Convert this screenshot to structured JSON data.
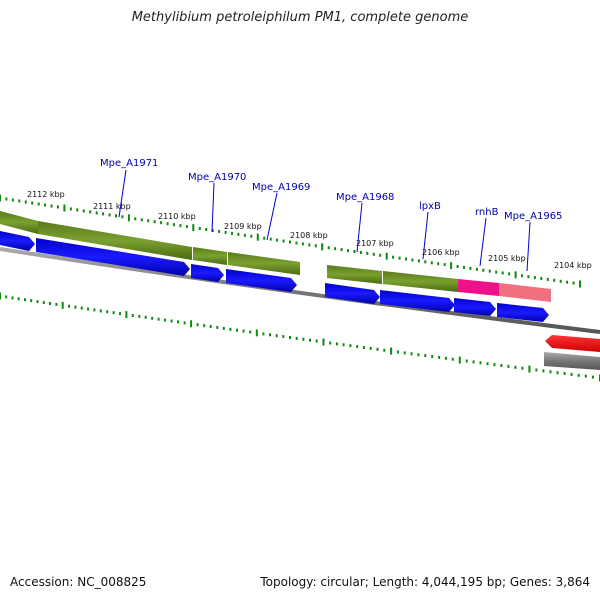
{
  "header": {
    "title": "Methylibium petroleiphilum PM1, complete genome"
  },
  "footer": {
    "accession": "Accession: NC_008825",
    "summary": "Topology: circular; Length: 4,044,195 bp; Genes: 3,864"
  },
  "map": {
    "kbp_labels": [
      "2112 kbp",
      "2111 kbp",
      "2110 kbp",
      "2109 kbp",
      "2108 kbp",
      "2107 kbp",
      "2106 kbp",
      "2105 kbp",
      "2104 kbp"
    ],
    "gene_labels": [
      "Mpe_A1971",
      "Mpe_A1970",
      "Mpe_A1969",
      "Mpe_A1968",
      "lpxB",
      "rnhB",
      "Mpe_A1965"
    ],
    "colors": {
      "gene": "#0000ee",
      "cds_feature": "#6b8e23",
      "rnhB_feature": "#ee1188",
      "rnhB_light": "#f07080",
      "reverse_feature": "#ee0000",
      "backbone": "#888888",
      "tick": "#118811",
      "label": "#0000aa"
    }
  }
}
